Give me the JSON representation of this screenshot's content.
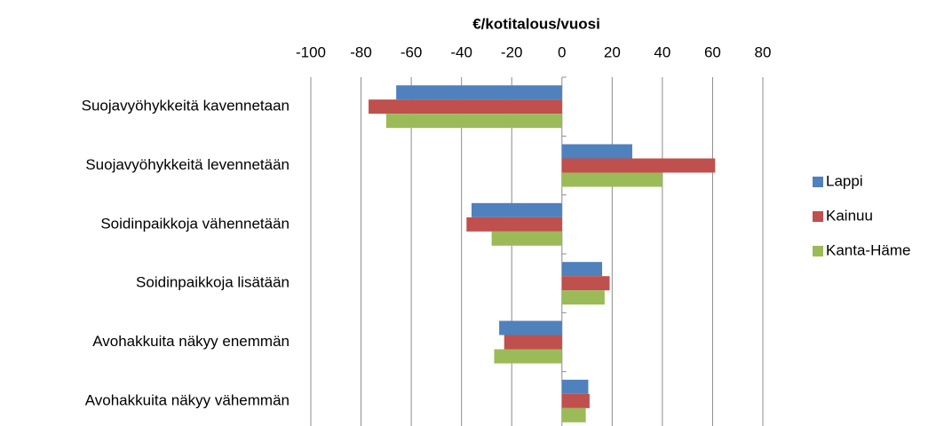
{
  "chart_data": {
    "type": "hbar",
    "xlabel": "€/kotitalous/vuosi",
    "categories": [
      "Suojavyöhykkeitä kavennetaan",
      "Suojavyöhykkeitä levennetään",
      "Soidinpaikkoja vähennetään",
      "Soidinpaikkoja lisätään",
      "Avohakkuita näkyy enemmän",
      "Avohakkuita näkyy vähemmän"
    ],
    "series": [
      {
        "name": "Lappi",
        "color": "#4f81bd",
        "values": [
          -66,
          28,
          -36,
          16,
          -25,
          10.5
        ]
      },
      {
        "name": "Kainuu",
        "color": "#c0504d",
        "values": [
          -77,
          61,
          -38,
          19,
          -23,
          11
        ]
      },
      {
        "name": "Kanta-Häme",
        "color": "#9bbb59",
        "values": [
          -70,
          40,
          -28,
          17,
          -27,
          9.5
        ]
      }
    ],
    "xlim": [
      -100,
      80
    ],
    "xticks": [
      -100,
      -80,
      -60,
      -40,
      -20,
      0,
      20,
      40,
      60,
      80
    ],
    "grid": true,
    "legend": "right"
  }
}
